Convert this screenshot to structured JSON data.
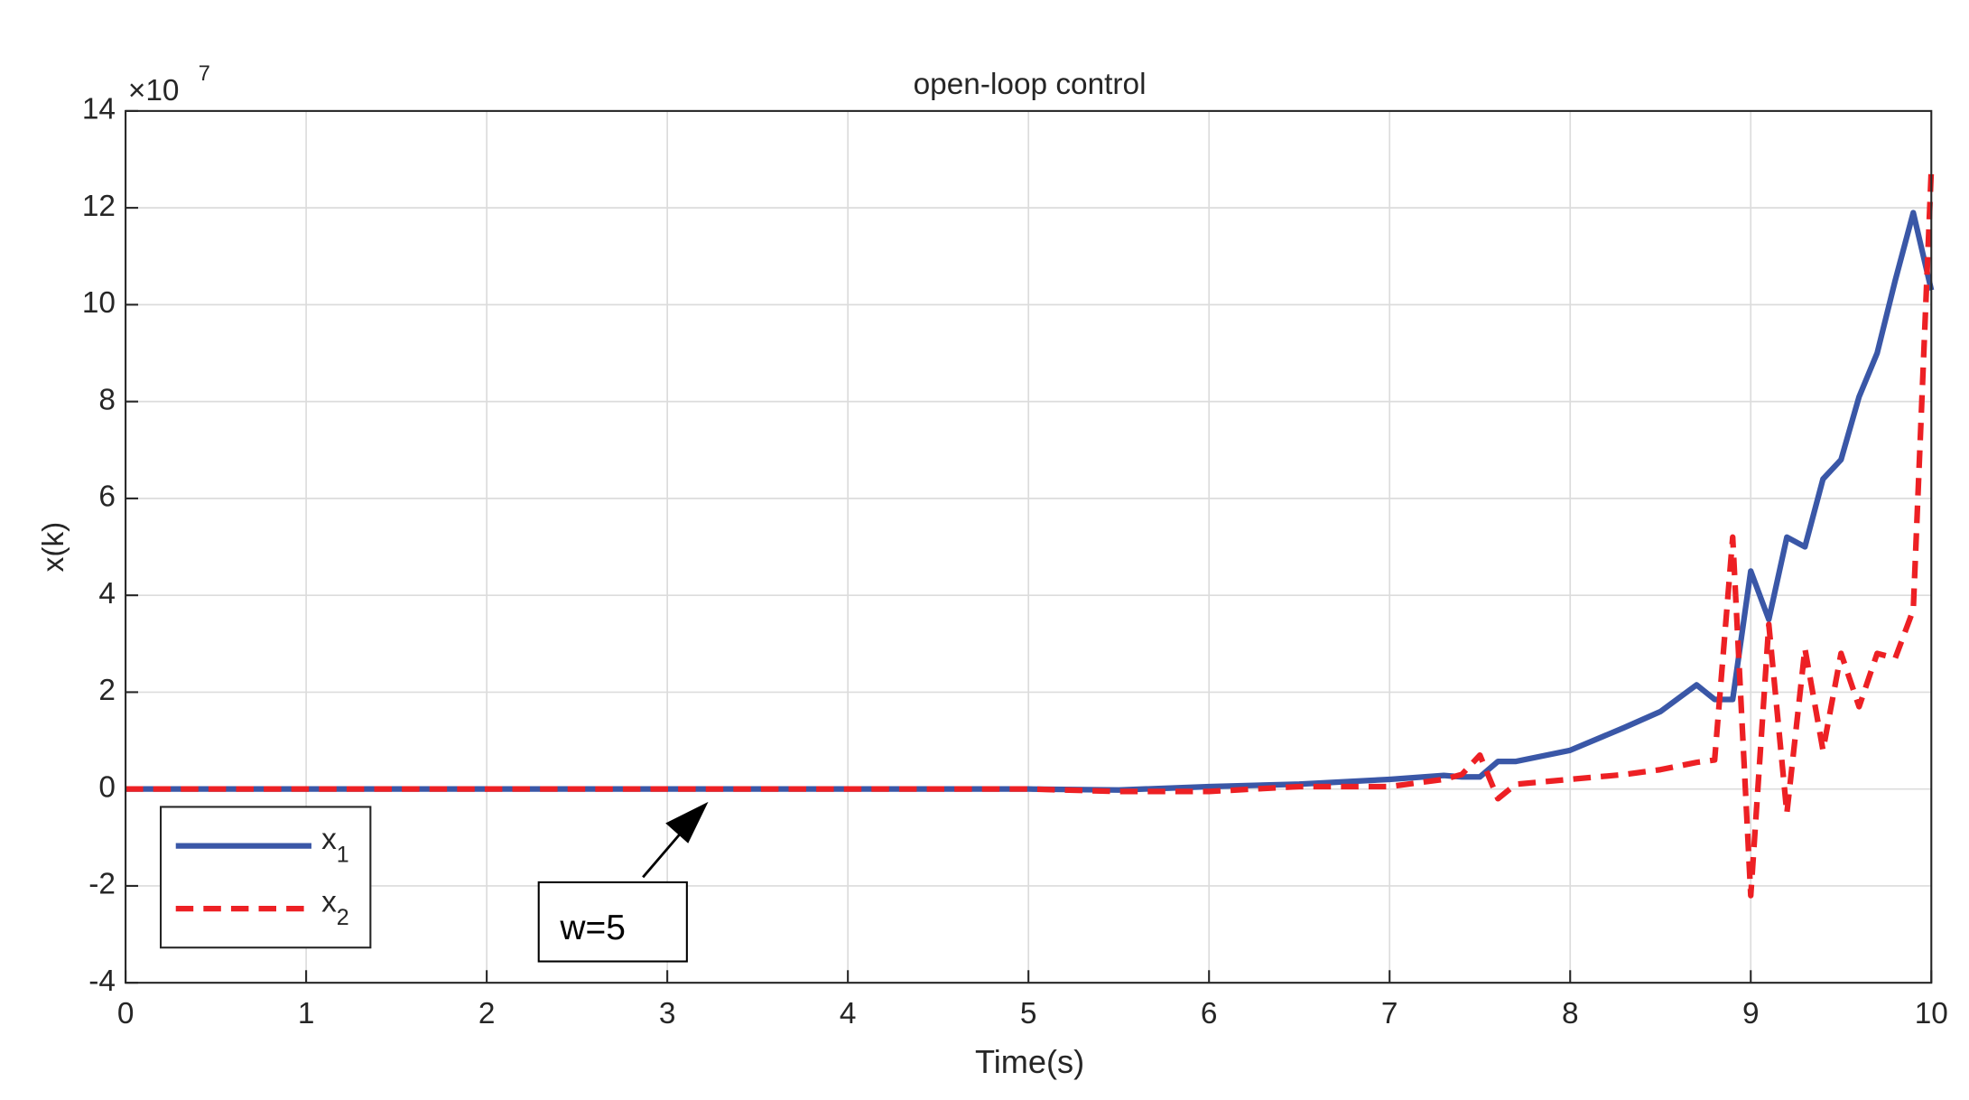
{
  "chart_data": {
    "type": "line",
    "title": "open-loop control",
    "xlabel": "Time(s)",
    "ylabel": "x(k)",
    "y_exponent_base": "×10",
    "y_exponent": "7",
    "x": [
      0,
      1,
      2,
      3,
      4,
      5,
      5.5,
      6,
      6.5,
      7,
      7.3,
      7.4,
      7.5,
      7.6,
      7.7,
      8,
      8.3,
      8.5,
      8.7,
      8.8,
      8.9,
      9,
      9.1,
      9.2,
      9.3,
      9.4,
      9.5,
      9.6,
      9.7,
      9.8,
      9.9,
      10
    ],
    "series": [
      {
        "name": "x1",
        "color": "#3a57a7",
        "dash": false,
        "values": [
          0,
          0,
          0,
          0,
          0,
          0,
          -0.02,
          0.05,
          0.1,
          0.2,
          0.28,
          0.25,
          0.25,
          0.57,
          0.57,
          0.8,
          1.27,
          1.6,
          2.15,
          1.85,
          1.85,
          4.5,
          3.5,
          5.2,
          5.0,
          6.4,
          6.8,
          8.1,
          9.0,
          10.5,
          11.9,
          10.3
        ]
      },
      {
        "name": "x2",
        "color": "#ed2024",
        "dash": true,
        "values": [
          0,
          0,
          0,
          0,
          0,
          0,
          -0.05,
          -0.05,
          0.05,
          0.05,
          0.2,
          0.3,
          0.7,
          -0.2,
          0.1,
          0.2,
          0.3,
          0.4,
          0.55,
          0.6,
          5.2,
          -2.2,
          3.4,
          -0.5,
          2.9,
          0.8,
          2.8,
          1.7,
          2.8,
          2.7,
          3.7,
          12.8
        ]
      }
    ],
    "xlim": [
      0,
      10
    ],
    "xticks": [
      0,
      1,
      2,
      3,
      4,
      5,
      6,
      7,
      8,
      9,
      10
    ],
    "ylim": [
      -4,
      14
    ],
    "yticks": [
      -4,
      -2,
      0,
      2,
      4,
      6,
      8,
      10,
      12,
      14
    ],
    "grid": true,
    "legend": "lower left",
    "annotation": "w=5"
  }
}
